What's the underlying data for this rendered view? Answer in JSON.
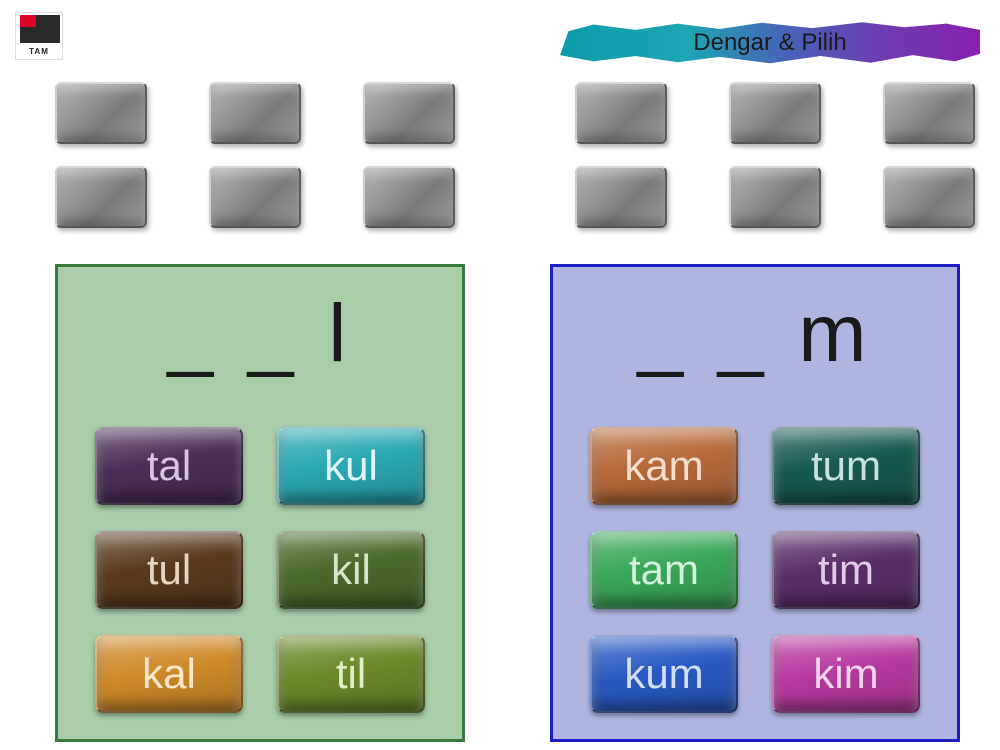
{
  "title": "Dengar & Pilih",
  "logo_text": "TAM",
  "gray_tiles": {
    "rows": 2,
    "left_cols": 3,
    "right_cols": 3,
    "color": "#8f8f8f"
  },
  "panel_left": {
    "heading": "_ _ l",
    "background": "#a9cca9",
    "border": "#3a7a3a",
    "buttons": [
      {
        "label": "tal",
        "bg": "#4a2e57",
        "fg": "#d6c6e2"
      },
      {
        "label": "kul",
        "bg": "#2aa9b3",
        "fg": "#dff6f8"
      },
      {
        "label": "tul",
        "bg": "#5a3a1e",
        "fg": "#e6d5c4"
      },
      {
        "label": "kil",
        "bg": "#4a6a2c",
        "fg": "#d7e4c6"
      },
      {
        "label": "kal",
        "bg": "#d08a2a",
        "fg": "#fbe8cc"
      },
      {
        "label": "til",
        "bg": "#6a8a2a",
        "fg": "#e3edc7"
      }
    ]
  },
  "panel_right": {
    "heading": "_ _ m",
    "background": "#afb5e0",
    "border": "#1b1fc4",
    "buttons": [
      {
        "label": "kam",
        "bg": "#b86a3a",
        "fg": "#f3ddcf"
      },
      {
        "label": "tum",
        "bg": "#185a52",
        "fg": "#c7e2de"
      },
      {
        "label": "tam",
        "bg": "#3aa85a",
        "fg": "#d5f0dd"
      },
      {
        "label": "tim",
        "bg": "#5a2e6a",
        "fg": "#e0cce8"
      },
      {
        "label": "kum",
        "bg": "#2a5ac4",
        "fg": "#d3ddf4"
      },
      {
        "label": "kim",
        "bg": "#b83aa0",
        "fg": "#f2d4ec"
      }
    ]
  }
}
